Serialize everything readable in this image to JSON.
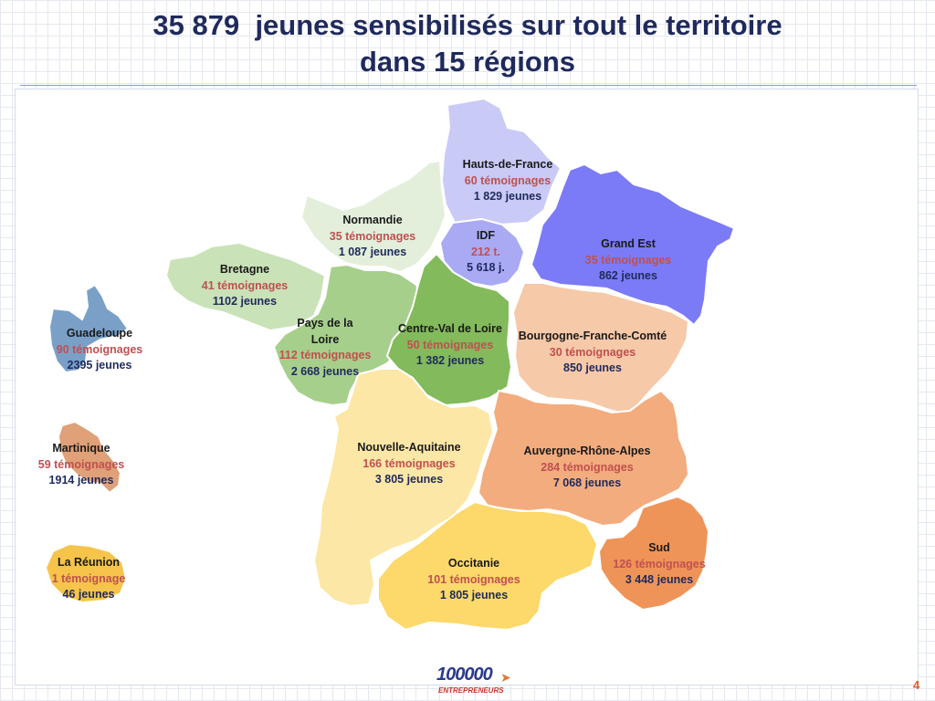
{
  "title": {
    "line1": "35 879  jeunes sensibilisés sur tout le territoire",
    "line2": "dans 15 régions"
  },
  "regions": [
    {
      "id": "hauts-de-france",
      "name": "Hauts-de-France",
      "temoignages": "60 témoignages",
      "jeunes": "1 829 jeunes",
      "color": "#c9caf6"
    },
    {
      "id": "normandie",
      "name": "Normandie",
      "temoignages": "35 témoignages",
      "jeunes": "1 087 jeunes",
      "color": "#e3efdb"
    },
    {
      "id": "idf",
      "name": "IDF",
      "temoignages": "212 t.",
      "jeunes": "5 618 j.",
      "color": "#a9a9f4"
    },
    {
      "id": "grand-est",
      "name": "Grand Est",
      "temoignages": "35 témoignages",
      "jeunes": "862 jeunes",
      "color": "#7b7bf7"
    },
    {
      "id": "bretagne",
      "name": "Bretagne",
      "temoignages": "41 témoignages",
      "jeunes": "1102 jeunes",
      "color": "#c9e2b7"
    },
    {
      "id": "pays-de-la-loire",
      "name": "Pays de la Loire",
      "temoignages": "112 témoignages",
      "jeunes": "2 668 jeunes",
      "color": "#a7cf8c"
    },
    {
      "id": "centre-val-de-loire",
      "name": "Centre-Val de Loire",
      "temoignages": "50 témoignages",
      "jeunes": "1 382 jeunes",
      "color": "#83ba5b"
    },
    {
      "id": "bourgogne-franche-comte",
      "name": "Bourgogne-Franche-Comté",
      "temoignages": "30 témoignages",
      "jeunes": "850 jeunes",
      "color": "#f6c9a9"
    },
    {
      "id": "nouvelle-aquitaine",
      "name": "Nouvelle-Aquitaine",
      "temoignages": "166 témoignages",
      "jeunes": "3 805 jeunes",
      "color": "#fce7a6"
    },
    {
      "id": "auvergne-rhone-alpes",
      "name": "Auvergne-Rhône-Alpes",
      "temoignages": "284 témoignages",
      "jeunes": "7 068 jeunes",
      "color": "#f3ac7e"
    },
    {
      "id": "occitanie",
      "name": "Occitanie",
      "temoignages": "101 témoignages",
      "jeunes": "1 805 jeunes",
      "color": "#fcd96a"
    },
    {
      "id": "sud",
      "name": "Sud",
      "temoignages": "126 témoignages",
      "jeunes": "3 448 jeunes",
      "color": "#ef9458"
    },
    {
      "id": "guadeloupe",
      "name": "Guadeloupe",
      "temoignages": "90 témoignages",
      "jeunes": "2395 jeunes",
      "color": "#7aa0c8"
    },
    {
      "id": "martinique",
      "name": "Martinique",
      "temoignages": "59 témoignages",
      "jeunes": "1914 jeunes",
      "color": "#e0a078"
    },
    {
      "id": "la-reunion",
      "name": "La Réunion",
      "temoignages": "1 témoignage",
      "jeunes": "46 jeunes",
      "color": "#f6c44a"
    }
  ],
  "logo": {
    "number": "100000",
    "subtitle": "ENTREPRENEURS"
  },
  "page_number": "4"
}
